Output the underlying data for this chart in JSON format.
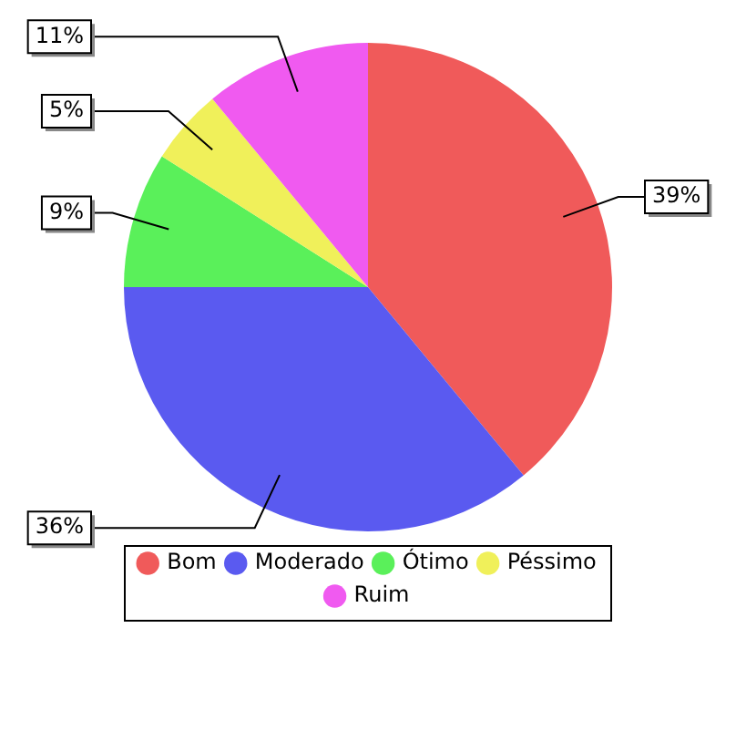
{
  "chart_data": {
    "type": "pie",
    "categories": [
      "Bom",
      "Moderado",
      "Ótimo",
      "Péssimo",
      "Ruim"
    ],
    "values": [
      39,
      36,
      9,
      5,
      11
    ],
    "colors": [
      "#f05a5a",
      "#5a5af0",
      "#5af05a",
      "#f0f05a",
      "#f05af0"
    ],
    "value_labels": [
      "39%",
      "36%",
      "9%",
      "5%",
      "11%"
    ],
    "legend": "bottom"
  }
}
